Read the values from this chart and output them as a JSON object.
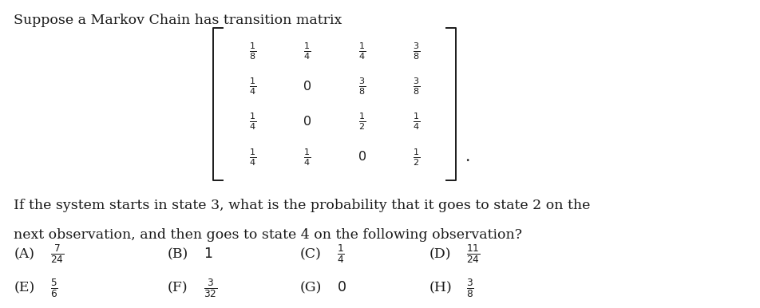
{
  "title_text": "Suppose a Markov Chain has transition matrix",
  "matrix": [
    [
      "\\frac{1}{8}",
      "\\frac{1}{4}",
      "\\frac{1}{4}",
      "\\frac{3}{8}"
    ],
    [
      "\\frac{1}{4}",
      "0",
      "\\frac{3}{8}",
      "\\frac{3}{8}"
    ],
    [
      "\\frac{1}{4}",
      "0",
      "\\frac{1}{2}",
      "\\frac{1}{4}"
    ],
    [
      "\\frac{1}{4}",
      "\\frac{1}{4}",
      "0",
      "\\frac{1}{2}"
    ]
  ],
  "question_line1": "If the system starts in state 3, what is the probability that it goes to state 2 on the",
  "question_line2": "next observation, and then goes to state 4 on the following observation?",
  "choices_row1": [
    [
      "(A)",
      "\\frac{7}{24}"
    ],
    [
      "(B)",
      "1"
    ],
    [
      "(C)",
      "\\frac{1}{4}"
    ],
    [
      "(D)",
      "\\frac{11}{24}"
    ]
  ],
  "choices_row2": [
    [
      "(E)",
      "\\frac{5}{6}"
    ],
    [
      "(F)",
      "\\frac{3}{32}"
    ],
    [
      "(G)",
      "0"
    ],
    [
      "(H)",
      "\\frac{3}{8}"
    ]
  ],
  "bg_color": "#ffffff",
  "text_color": "#1a1a1a",
  "font_size": 12.5,
  "matrix_font_size": 11.5
}
